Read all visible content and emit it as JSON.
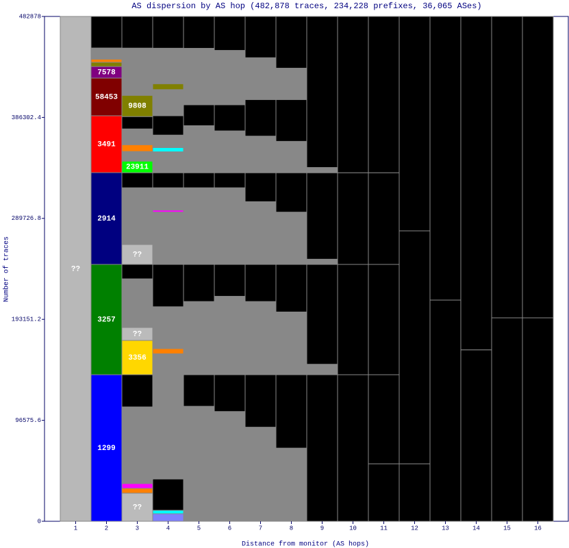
{
  "chart_data": {
    "type": "stacked-bar",
    "title": "AS dispersion by AS hop (482,878 traces, 234,228 prefixes, 36,065 ASes)",
    "x_label": "Distance from monitor (AS hops)",
    "y_label": "Number of traces",
    "categories": [
      "1",
      "2",
      "3",
      "4",
      "5",
      "6",
      "7",
      "8",
      "9",
      "10",
      "11",
      "12",
      "13",
      "14",
      "15",
      "16"
    ],
    "ylim": [
      0,
      482878
    ],
    "yticks": [
      0,
      96575.6,
      193151.2,
      289726.8,
      386302.4,
      482878
    ],
    "columns": [
      [
        {
          "value": 482878,
          "color": "#b8b8b8",
          "label": "??"
        }
      ],
      [
        {
          "value": 140200,
          "color": "#0000ff",
          "label": "1299"
        },
        {
          "value": 105500,
          "color": "#008000",
          "label": "3257"
        },
        {
          "value": 87800,
          "color": "#000080",
          "label": "2914"
        },
        {
          "value": 54400,
          "color": "#ff0000",
          "label": "3491"
        },
        {
          "value": 36000,
          "color": "#800000",
          "label": "58453"
        },
        {
          "value": 11100,
          "color": "#800080",
          "label": "7578"
        },
        {
          "value": 4000,
          "color": "#808000"
        },
        {
          "value": 3000,
          "color": "#ff8000"
        },
        {
          "value": 10700,
          "color": "#888888"
        },
        {
          "value": 30178,
          "color": "#000000"
        }
      ],
      [
        {
          "value": 26900,
          "color": "#bbbbbb",
          "label": "??"
        },
        {
          "value": 4600,
          "color": "#ff8000"
        },
        {
          "value": 4600,
          "color": "#ff00ff"
        },
        {
          "value": 17000,
          "color": "#888888"
        },
        {
          "value": 56300,
          "color": "#888888"
        },
        {
          "value": 30800,
          "color": "#000000"
        },
        {
          "value": 32800,
          "color": "#ffd700",
          "label": "3356"
        },
        {
          "value": 12400,
          "color": "#bbbbbb",
          "label": "??"
        },
        {
          "value": 31400,
          "color": "#888888"
        },
        {
          "value": 15100,
          "color": "#888888"
        },
        {
          "value": 13800,
          "color": "#000000"
        },
        {
          "value": 19000,
          "color": "#bbbbbb",
          "label": "??"
        },
        {
          "value": 37300,
          "color": "#888888"
        },
        {
          "value": 17000,
          "color": "#888888"
        },
        {
          "value": 14400,
          "color": "#000000"
        },
        {
          "value": 11100,
          "color": "#00ff00",
          "label": "23911"
        },
        {
          "value": 9200,
          "color": "#888888"
        },
        {
          "value": 6500,
          "color": "#ff8000"
        },
        {
          "value": 15100,
          "color": "#888888"
        },
        {
          "value": 11800,
          "color": "#000000"
        },
        {
          "value": 20300,
          "color": "#808000",
          "label": "9808"
        },
        {
          "value": 15700,
          "color": "#888888"
        },
        {
          "value": 29500,
          "color": "#888888"
        },
        {
          "value": 30278,
          "color": "#000000"
        }
      ],
      [
        {
          "value": 7200,
          "color": "#8080ff"
        },
        {
          "value": 3300,
          "color": "#00ffff"
        },
        {
          "value": 30000,
          "color": "#000000"
        },
        {
          "value": 99700,
          "color": "#888888"
        },
        {
          "value": 20000,
          "color": "#888888"
        },
        {
          "value": 5000,
          "color": "#ff8000"
        },
        {
          "value": 40000,
          "color": "#888888"
        },
        {
          "value": 40500,
          "color": "#000000"
        },
        {
          "value": 50000,
          "color": "#888888"
        },
        {
          "value": 2000,
          "color": "#ff00ff"
        },
        {
          "value": 21300,
          "color": "#888888"
        },
        {
          "value": 14400,
          "color": "#000000"
        },
        {
          "value": 20000,
          "color": "#888888"
        },
        {
          "value": 4000,
          "color": "#00ffff"
        },
        {
          "value": 12000,
          "color": "#888888"
        },
        {
          "value": 18500,
          "color": "#000000"
        },
        {
          "value": 25000,
          "color": "#888888"
        },
        {
          "value": 5600,
          "color": "#808000"
        },
        {
          "value": 34000,
          "color": "#888888"
        },
        {
          "value": 30378,
          "color": "#000000"
        }
      ],
      [
        {
          "value": 110000,
          "color": "#888888"
        },
        {
          "value": 30200,
          "color": "#000000"
        },
        {
          "value": 70000,
          "color": "#888888"
        },
        {
          "value": 35500,
          "color": "#000000"
        },
        {
          "value": 73300,
          "color": "#888888"
        },
        {
          "value": 14400,
          "color": "#000000"
        },
        {
          "value": 45000,
          "color": "#888888"
        },
        {
          "value": 20000,
          "color": "#000000"
        },
        {
          "value": 54000,
          "color": "#888888"
        },
        {
          "value": 30478,
          "color": "#000000"
        }
      ],
      [
        {
          "value": 105000,
          "color": "#888888"
        },
        {
          "value": 35200,
          "color": "#000000"
        },
        {
          "value": 75000,
          "color": "#888888"
        },
        {
          "value": 30500,
          "color": "#000000"
        },
        {
          "value": 73300,
          "color": "#888888"
        },
        {
          "value": 14400,
          "color": "#000000"
        },
        {
          "value": 40000,
          "color": "#888888"
        },
        {
          "value": 25000,
          "color": "#000000"
        },
        {
          "value": 52000,
          "color": "#888888"
        },
        {
          "value": 32478,
          "color": "#000000"
        }
      ],
      [
        {
          "value": 90000,
          "color": "#888888"
        },
        {
          "value": 50200,
          "color": "#000000"
        },
        {
          "value": 70000,
          "color": "#888888"
        },
        {
          "value": 35500,
          "color": "#000000"
        },
        {
          "value": 60000,
          "color": "#888888"
        },
        {
          "value": 27700,
          "color": "#000000"
        },
        {
          "value": 35000,
          "color": "#888888"
        },
        {
          "value": 35000,
          "color": "#000000"
        },
        {
          "value": 40000,
          "color": "#888888"
        },
        {
          "value": 39478,
          "color": "#000000"
        }
      ],
      [
        {
          "value": 70000,
          "color": "#888888"
        },
        {
          "value": 70200,
          "color": "#000000"
        },
        {
          "value": 60000,
          "color": "#888888"
        },
        {
          "value": 45500,
          "color": "#000000"
        },
        {
          "value": 50000,
          "color": "#888888"
        },
        {
          "value": 37700,
          "color": "#000000"
        },
        {
          "value": 30000,
          "color": "#888888"
        },
        {
          "value": 40000,
          "color": "#000000"
        },
        {
          "value": 30000,
          "color": "#888888"
        },
        {
          "value": 49478,
          "color": "#000000"
        }
      ],
      [
        {
          "value": 140200,
          "color": "#000000"
        },
        {
          "value": 10000,
          "color": "#888888"
        },
        {
          "value": 95500,
          "color": "#000000"
        },
        {
          "value": 5000,
          "color": "#888888"
        },
        {
          "value": 82700,
          "color": "#000000"
        },
        {
          "value": 5000,
          "color": "#888888"
        },
        {
          "value": 144478,
          "color": "#000000"
        }
      ],
      [
        {
          "value": 140200,
          "color": "#000000"
        },
        {
          "value": 105500,
          "color": "#000000"
        },
        {
          "value": 87700,
          "color": "#000000"
        },
        {
          "value": 149478,
          "color": "#000000"
        }
      ],
      [
        {
          "value": 55000,
          "color": "#000000"
        },
        {
          "value": 85200,
          "color": "#000000"
        },
        {
          "value": 105500,
          "color": "#000000"
        },
        {
          "value": 87700,
          "color": "#000000"
        },
        {
          "value": 149478,
          "color": "#000000"
        }
      ],
      [
        {
          "value": 55000,
          "color": "#000000"
        },
        {
          "value": 222800,
          "color": "#000000"
        },
        {
          "value": 205078,
          "color": "#000000"
        }
      ],
      [
        {
          "value": 211600,
          "color": "#000000"
        },
        {
          "value": 271278,
          "color": "#000000"
        }
      ],
      [
        {
          "value": 164000,
          "color": "#000000"
        },
        {
          "value": 318878,
          "color": "#000000"
        }
      ],
      [
        {
          "value": 194600,
          "color": "#000000"
        },
        {
          "value": 288278,
          "color": "#000000"
        }
      ],
      [
        {
          "value": 194600,
          "color": "#000000"
        },
        {
          "value": 288278,
          "color": "#000000"
        }
      ]
    ]
  }
}
